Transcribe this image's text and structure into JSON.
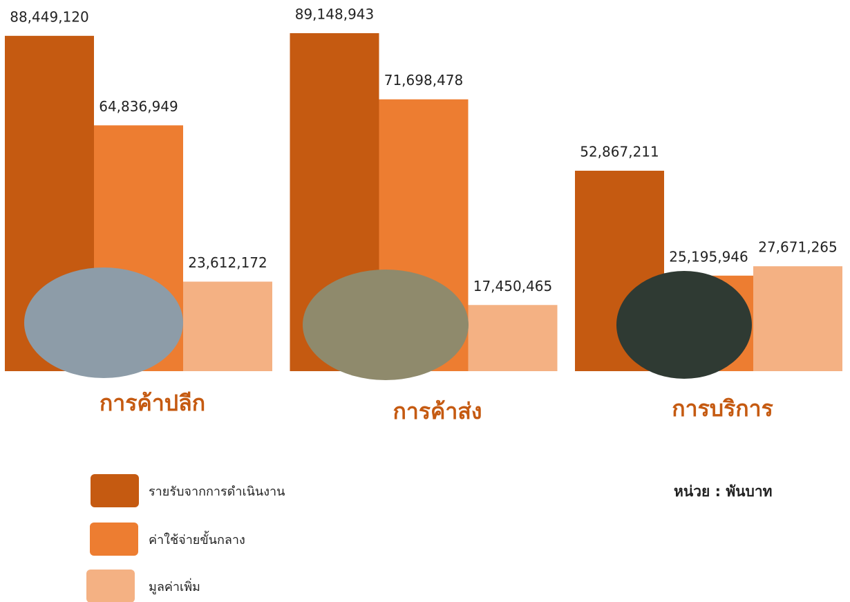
{
  "chart_data": {
    "type": "bar",
    "categories": [
      "การค้าปลีก",
      "การค้าส่ง",
      "การบริการ"
    ],
    "series": [
      {
        "name": "รายรับจากการดำเนินงาน",
        "color": "#c55a11",
        "values": [
          88449120,
          89148943,
          52867211
        ],
        "value_labels": [
          "88,449,120",
          "89,148,943",
          "52,867,211"
        ]
      },
      {
        "name": "ค่าใช้จ่ายขั้นกลาง",
        "color": "#ed7d31",
        "values": [
          64836949,
          71698478,
          25195946
        ],
        "value_labels": [
          "64,836,949",
          "71,698,478",
          "25,195,946"
        ]
      },
      {
        "name": "มูลค่าเพิ่ม",
        "color": "#f4b183",
        "values": [
          23612172,
          17450465,
          27671265
        ],
        "value_labels": [
          "23,612,172",
          "17,450,465",
          "27,671,265"
        ]
      }
    ],
    "note": "หน่วย : พันบาท",
    "legend": "bottom-left"
  }
}
